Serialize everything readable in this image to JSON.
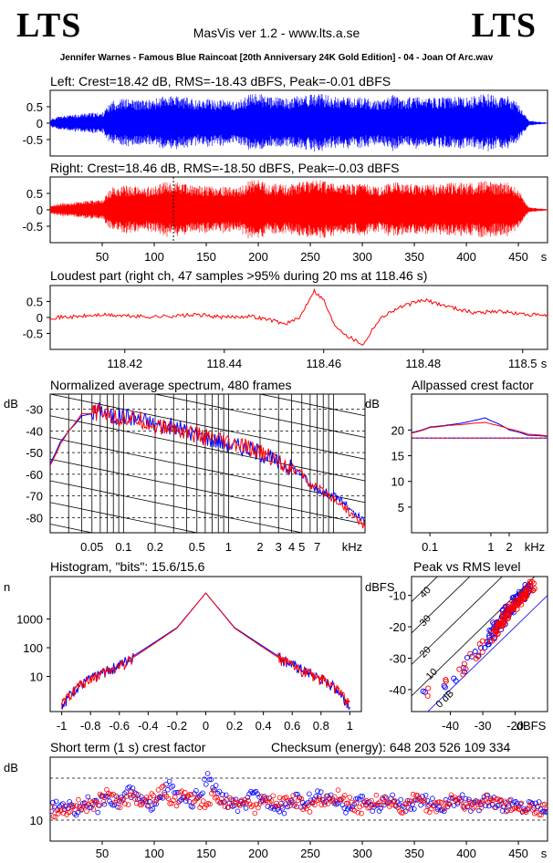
{
  "header": {
    "logo_left": "LTS",
    "logo_right": "LTS",
    "app_title": "MasVis ver 1.2 - www.lts.a.se",
    "track": "Jennifer Warnes - Famous Blue Raincoat [20th Anniversary 24K Gold Edition] - 04 - Joan Of Arc.wav"
  },
  "colors": {
    "left": "#0000ff",
    "right": "#ff0000",
    "frame": "#000000",
    "grid": "#000000"
  },
  "chart_data": [
    {
      "id": "left_waveform",
      "type": "area",
      "title": "Left: Crest=18.42 dB, RMS=-18.43 dBFS, Peak=-0.01 dBFS",
      "series": [
        {
          "name": "Left",
          "color": "#0000ff"
        }
      ],
      "x": [
        0,
        5,
        10,
        20,
        30,
        40,
        50,
        60,
        70,
        80,
        90,
        100,
        110,
        120,
        130,
        140,
        150,
        160,
        170,
        180,
        190,
        200,
        210,
        220,
        230,
        240,
        250,
        260,
        270,
        280,
        290,
        300,
        310,
        320,
        330,
        340,
        350,
        360,
        370,
        380,
        390,
        400,
        410,
        420,
        430,
        440,
        450,
        460,
        470,
        478
      ],
      "envelope": [
        0.12,
        0.18,
        0.22,
        0.25,
        0.3,
        0.32,
        0.32,
        0.7,
        0.75,
        0.72,
        0.7,
        0.73,
        0.85,
        0.82,
        0.8,
        0.72,
        0.75,
        0.7,
        0.72,
        0.65,
        0.85,
        0.95,
        0.78,
        0.8,
        0.75,
        0.85,
        0.88,
        0.9,
        0.82,
        0.8,
        0.78,
        0.8,
        0.72,
        0.7,
        0.88,
        0.75,
        0.82,
        0.75,
        0.78,
        0.8,
        0.82,
        0.78,
        0.85,
        0.9,
        0.8,
        0.82,
        0.6,
        0.08,
        0.04,
        0.02
      ],
      "ytick_labels": [
        "0.5",
        "0",
        "-0.5"
      ],
      "ylim": [
        -1,
        1
      ],
      "xlim": [
        0,
        478
      ]
    },
    {
      "id": "right_waveform",
      "type": "area",
      "title": "Right: Crest=18.46 dB, RMS=-18.50 dBFS, Peak=-0.03 dBFS",
      "series": [
        {
          "name": "Right",
          "color": "#ff0000"
        }
      ],
      "x": [
        0,
        5,
        10,
        20,
        30,
        40,
        50,
        60,
        70,
        80,
        90,
        100,
        110,
        120,
        130,
        140,
        150,
        160,
        170,
        180,
        190,
        200,
        210,
        220,
        230,
        240,
        250,
        260,
        270,
        280,
        290,
        300,
        310,
        320,
        330,
        340,
        350,
        360,
        370,
        380,
        390,
        400,
        410,
        420,
        430,
        440,
        450,
        460,
        470,
        478
      ],
      "envelope": [
        0.1,
        0.15,
        0.2,
        0.22,
        0.28,
        0.3,
        0.3,
        0.7,
        0.75,
        0.72,
        0.7,
        0.72,
        0.88,
        0.85,
        0.8,
        0.74,
        0.75,
        0.72,
        0.72,
        0.66,
        0.88,
        0.95,
        0.8,
        0.8,
        0.76,
        0.85,
        0.9,
        0.92,
        0.82,
        0.8,
        0.78,
        0.8,
        0.74,
        0.72,
        0.9,
        0.76,
        0.82,
        0.76,
        0.8,
        0.82,
        0.84,
        0.8,
        0.86,
        0.9,
        0.82,
        0.84,
        0.62,
        0.08,
        0.04,
        0.02
      ],
      "marker_x": 118.46,
      "ytick_labels": [
        "0.5",
        "0",
        "-0.5"
      ],
      "xtick_labels": [
        "50",
        "100",
        "150",
        "200",
        "250",
        "300",
        "350",
        "400",
        "450",
        "s"
      ],
      "ylim": [
        -1,
        1
      ],
      "xlim": [
        0,
        478
      ]
    },
    {
      "id": "loudest_part",
      "type": "line",
      "title": "Loudest part (right ch, 47 samples >95% during 20 ms at 118.46 s)",
      "series": [
        {
          "name": "Right",
          "color": "#ff0000"
        }
      ],
      "x": [
        118.405,
        118.41,
        118.415,
        118.42,
        118.425,
        118.43,
        118.435,
        118.44,
        118.445,
        118.45,
        118.452,
        118.455,
        118.458,
        118.46,
        118.462,
        118.465,
        118.468,
        118.47,
        118.472,
        118.475,
        118.48,
        118.485,
        118.49,
        118.495,
        118.5,
        118.505
      ],
      "y": [
        0.0,
        0.02,
        0.08,
        0.05,
        0.02,
        0.05,
        0.08,
        0.0,
        0.05,
        -0.1,
        -0.2,
        -0.05,
        0.85,
        0.55,
        -0.2,
        -0.6,
        -0.85,
        -0.3,
        0.05,
        0.3,
        0.55,
        0.35,
        0.15,
        0.2,
        0.1,
        0.05
      ],
      "ytick_labels": [
        "0.5",
        "0",
        "-0.5"
      ],
      "xtick_labels": [
        "118.42",
        "118.44",
        "118.46",
        "118.48",
        "118.5",
        "s"
      ],
      "xlim": [
        118.405,
        118.505
      ],
      "ylim": [
        -1,
        1
      ]
    },
    {
      "id": "avg_spectrum",
      "type": "line",
      "title": "Normalized average spectrum, 480 frames",
      "ylabel": "dB",
      "xscale": "log",
      "series": [
        {
          "name": "Left",
          "color": "#0000ff",
          "x": [
            0.02,
            0.025,
            0.03,
            0.04,
            0.05,
            0.06,
            0.08,
            0.1,
            0.15,
            0.2,
            0.3,
            0.5,
            0.7,
            1,
            1.5,
            2,
            3,
            4,
            5,
            6,
            8,
            10,
            12,
            15,
            20
          ],
          "y": [
            -55,
            -45,
            -40,
            -33,
            -32,
            -30,
            -34,
            -33,
            -35,
            -37,
            -38,
            -42,
            -44,
            -46,
            -48,
            -50,
            -55,
            -57,
            -60,
            -65,
            -68,
            -70,
            -72,
            -78,
            -82
          ]
        },
        {
          "name": "Right",
          "color": "#ff0000",
          "x": [
            0.02,
            0.025,
            0.03,
            0.04,
            0.05,
            0.06,
            0.08,
            0.1,
            0.15,
            0.2,
            0.3,
            0.5,
            0.7,
            1,
            1.5,
            2,
            3,
            4,
            5,
            6,
            8,
            10,
            12,
            15,
            20
          ],
          "y": [
            -56,
            -46,
            -40,
            -32,
            -32,
            -31,
            -34,
            -34,
            -35,
            -38,
            -39,
            -42,
            -44,
            -46,
            -48,
            -50,
            -54,
            -57,
            -60,
            -65,
            -68,
            -71,
            -74,
            -79,
            -84
          ]
        }
      ],
      "ytick_labels": [
        "-30",
        "-40",
        "-50",
        "-60",
        "-70",
        "-80"
      ],
      "xtick_labels": [
        "0.05",
        "0.1",
        "0.2",
        "0.5",
        "1",
        "2",
        "3",
        "4",
        "5",
        "7",
        "kHz"
      ],
      "xlim": [
        0.02,
        20
      ],
      "ylim": [
        -87,
        -23
      ]
    },
    {
      "id": "allpassed_crest",
      "type": "line",
      "title": "Allpassed crest factor",
      "ylabel": "dB",
      "xscale": "log",
      "series": [
        {
          "name": "Left",
          "color": "#0000ff",
          "x": [
            0.05,
            0.1,
            0.2,
            0.5,
            0.8,
            1,
            2,
            4,
            8
          ],
          "y": [
            19.5,
            20.6,
            21.0,
            21.8,
            22.4,
            21.8,
            20.0,
            19.0,
            18.8
          ]
        },
        {
          "name": "Right",
          "color": "#ff0000",
          "x": [
            0.05,
            0.1,
            0.2,
            0.5,
            0.8,
            1,
            2,
            4,
            8
          ],
          "y": [
            19.4,
            20.5,
            20.9,
            21.3,
            21.5,
            21.2,
            20.2,
            19.2,
            18.9
          ]
        }
      ],
      "reference_line": 18.44,
      "ytick_labels": [
        "20",
        "15",
        "10",
        "5"
      ],
      "xtick_labels": [
        "0.1",
        "1",
        "2",
        "kHz"
      ],
      "xlim": [
        0.05,
        8.5
      ],
      "ylim": [
        0,
        27
      ]
    },
    {
      "id": "histogram",
      "type": "line",
      "title": "Histogram, \"bits\": 15.6/15.6",
      "ylabel": "n",
      "yscale": "log",
      "series": [
        {
          "name": "Left",
          "color": "#0000ff",
          "x": [
            -1,
            -0.95,
            -0.9,
            -0.8,
            -0.6,
            -0.4,
            -0.2,
            0,
            0.2,
            0.4,
            0.6,
            0.8,
            0.9,
            0.95,
            1
          ],
          "y": [
            1,
            2,
            4,
            8,
            25,
            110,
            500,
            8000,
            500,
            110,
            25,
            8,
            4,
            2,
            1
          ]
        },
        {
          "name": "Right",
          "color": "#ff0000",
          "x": [
            -1,
            -0.95,
            -0.9,
            -0.8,
            -0.6,
            -0.4,
            -0.2,
            0,
            0.2,
            0.4,
            0.6,
            0.8,
            0.9,
            0.95,
            1
          ],
          "y": [
            1,
            2,
            4,
            8,
            22,
            100,
            480,
            8000,
            480,
            100,
            22,
            8,
            4,
            2,
            1
          ]
        }
      ],
      "ytick_labels": [
        "1000",
        "100",
        "10"
      ],
      "xtick_labels": [
        "-1",
        "-0.8",
        "-0.6",
        "-0.4",
        "-0.2",
        "0",
        "0.2",
        "0.4",
        "0.6",
        "0.8",
        "1"
      ],
      "xlim": [
        -1.08,
        1.08
      ],
      "ylim": [
        0.6,
        30000
      ]
    },
    {
      "id": "peak_vs_rms",
      "type": "scatter",
      "title": "Peak vs RMS level",
      "ylabel": "dBFS",
      "xlabel": "dBFS",
      "series": [
        {
          "name": "Left",
          "color": "#0000ff",
          "x": [
            -48,
            -42,
            -38,
            -36,
            -34,
            -32,
            -30,
            -29,
            -28,
            -27,
            -26,
            -25,
            -24,
            -23,
            -22,
            -21,
            -20,
            -19,
            -18,
            -17,
            -16
          ],
          "y": [
            -42,
            -38,
            -36,
            -34,
            -30,
            -28,
            -27,
            -25,
            -24,
            -22,
            -20,
            -20,
            -18,
            -16,
            -15,
            -14,
            -12,
            -11,
            -10,
            -9,
            -8
          ]
        },
        {
          "name": "Right",
          "color": "#ff0000",
          "x": [
            -47,
            -41,
            -37,
            -35,
            -33,
            -31,
            -30,
            -28,
            -27,
            -26,
            -25,
            -24,
            -23,
            -22,
            -21,
            -20,
            -19,
            -18,
            -17,
            -16,
            -15
          ],
          "y": [
            -41,
            -37,
            -35,
            -33,
            -30,
            -28,
            -26,
            -24,
            -23,
            -21,
            -20,
            -19,
            -17,
            -15,
            -14,
            -13,
            -12,
            -11,
            -10,
            -9,
            -7
          ]
        }
      ],
      "diagonal_labels": [
        "40",
        "30",
        "20",
        "10",
        "0 dB"
      ],
      "ytick_labels": [
        "-10",
        "-20",
        "-30",
        "-40"
      ],
      "xtick_labels": [
        "-40",
        "-30",
        "-20",
        "dBFS"
      ],
      "xlim": [
        -52,
        -10
      ],
      "ylim": [
        -47,
        -4
      ]
    },
    {
      "id": "short_term_crest",
      "type": "scatter",
      "title": "Short term (1 s) crest factor",
      "checksum": "Checksum (energy):  648 203 526 109 334",
      "ylabel": "dB",
      "series": [
        {
          "name": "Left",
          "color": "#0000ff",
          "x": [
            5,
            15,
            25,
            35,
            45,
            55,
            65,
            75,
            85,
            95,
            105,
            115,
            125,
            135,
            145,
            152,
            165,
            175,
            185,
            195,
            205,
            215,
            225,
            235,
            245,
            255,
            265,
            275,
            285,
            295,
            305,
            315,
            325,
            335,
            345,
            355,
            365,
            375,
            385,
            395,
            405,
            415,
            425,
            435,
            445,
            455,
            465,
            475
          ],
          "y": [
            13,
            14,
            12,
            15,
            13,
            16,
            14,
            17,
            15,
            13,
            16,
            18,
            15,
            14,
            17,
            20,
            15,
            14,
            13,
            16,
            15,
            14,
            13,
            15,
            14,
            16,
            15,
            14,
            13,
            15,
            14,
            13,
            15,
            14,
            13,
            14,
            15,
            13,
            14,
            15,
            13,
            14,
            15,
            13,
            14,
            13,
            14,
            13
          ]
        },
        {
          "name": "Right",
          "color": "#ff0000",
          "x": [
            8,
            18,
            28,
            38,
            48,
            58,
            68,
            78,
            88,
            98,
            108,
            118,
            128,
            138,
            148,
            158,
            168,
            178,
            188,
            198,
            208,
            218,
            228,
            238,
            248,
            258,
            268,
            278,
            288,
            298,
            308,
            318,
            328,
            338,
            348,
            358,
            368,
            378,
            388,
            398,
            408,
            418,
            428,
            438,
            448,
            458,
            468,
            476
          ],
          "y": [
            12,
            13,
            14,
            13,
            15,
            17,
            13,
            16,
            14,
            15,
            17,
            14,
            16,
            15,
            14,
            16,
            14,
            15,
            14,
            13,
            16,
            14,
            15,
            14,
            13,
            15,
            14,
            16,
            14,
            13,
            14,
            15,
            14,
            13,
            15,
            14,
            13,
            14,
            15,
            14,
            13,
            15,
            14,
            13,
            14,
            13,
            12,
            13
          ]
        }
      ],
      "reference_lines": [
        10,
        20
      ],
      "ytick_labels": [
        "10"
      ],
      "xtick_labels": [
        "50",
        "100",
        "150",
        "200",
        "250",
        "300",
        "350",
        "400",
        "450",
        "s"
      ],
      "xlim": [
        0,
        478
      ],
      "ylim": [
        5,
        25
      ]
    }
  ]
}
